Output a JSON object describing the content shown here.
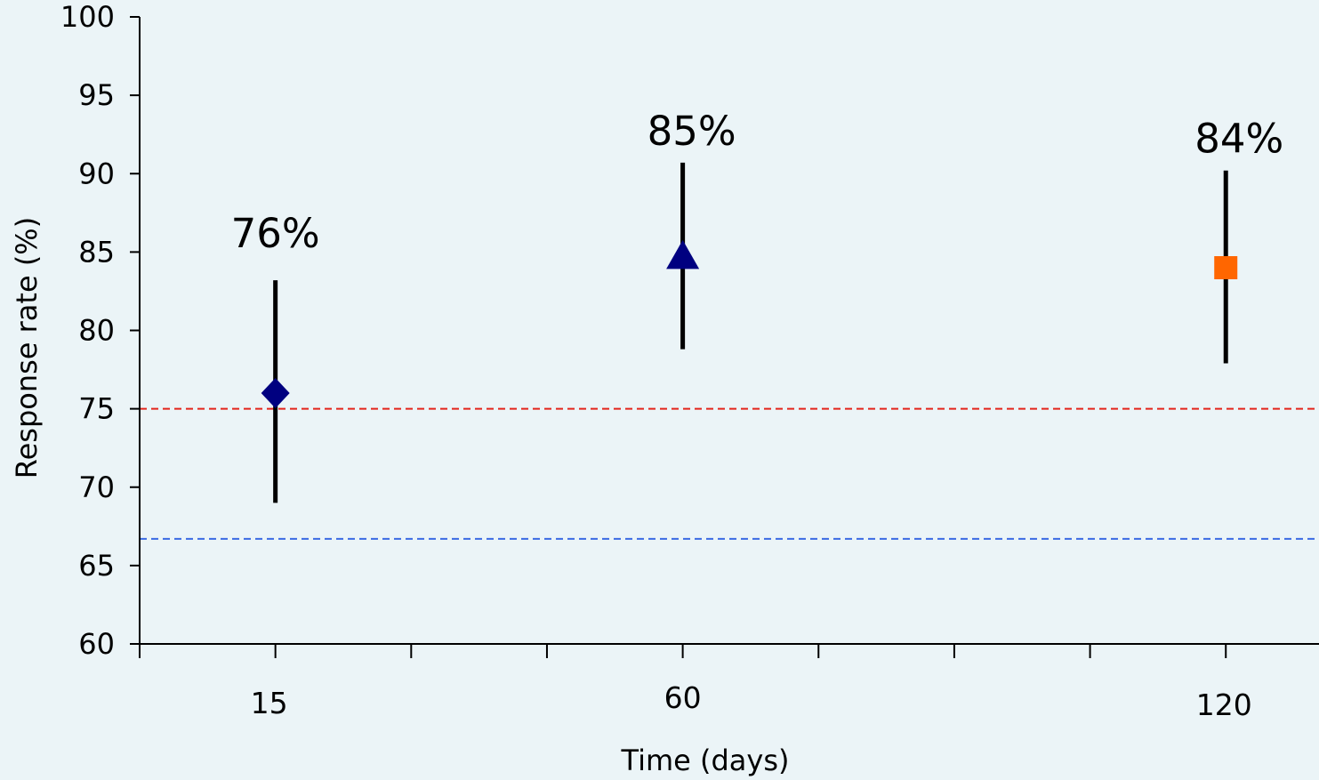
{
  "chart_data": {
    "type": "scatter",
    "xlabel": "Time (days)",
    "ylabel": "Response rate (%)",
    "xlim": [
      0,
      130
    ],
    "ylim": [
      60,
      100
    ],
    "x_ticks": [
      0,
      15,
      30,
      45,
      60,
      75,
      90,
      105,
      120
    ],
    "x_tick_labels": [
      15,
      60,
      120
    ],
    "y_ticks": [
      60,
      65,
      70,
      75,
      80,
      85,
      90,
      95,
      100
    ],
    "grid": false,
    "legend": false,
    "points": [
      {
        "x": 15,
        "y": 76,
        "y_low": 69,
        "y_high": 83.2,
        "label": "76%",
        "marker": "diamond",
        "color": "#000080"
      },
      {
        "x": 60,
        "y": 84.8,
        "y_low": 78.8,
        "y_high": 90.7,
        "label": "85%",
        "marker": "triangle",
        "color": "#000080"
      },
      {
        "x": 120,
        "y": 84,
        "y_low": 77.9,
        "y_high": 90.2,
        "label": "84%",
        "marker": "square",
        "color": "#FF6600"
      }
    ],
    "reference_lines": [
      {
        "y": 75,
        "color": "#E3241B",
        "dashed": true
      },
      {
        "y": 66.7,
        "color": "#3B6AE3",
        "dashed": true
      }
    ],
    "error_bar_color": "#000000"
  },
  "colors": {
    "background": "#EBF4F7",
    "axis": "#000000"
  }
}
